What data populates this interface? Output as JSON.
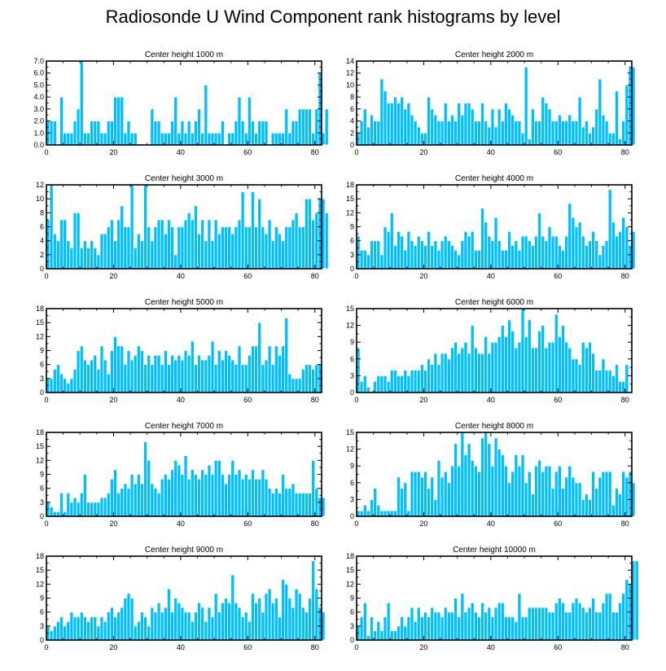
{
  "chart_data": {
    "title": "Radiosonde U Wind Component rank histograms by level",
    "type": "bar",
    "panels": [
      {
        "title": "Center height 1000 m",
        "xlim": [
          0,
          82
        ],
        "ylim": [
          0,
          7
        ],
        "xticks": [
          "0",
          "20",
          "40",
          "60",
          "80"
        ],
        "yticks": [
          "0.0",
          "1.0",
          "2.0",
          "3.0",
          "4.0",
          "5.0",
          "6.0",
          "7.0"
        ],
        "ytick_values": [
          0,
          1,
          2,
          3,
          4,
          5,
          6,
          7
        ],
        "values": [
          2,
          2,
          2,
          0,
          4,
          1,
          1,
          1,
          2,
          3,
          7,
          1,
          1,
          2,
          2,
          2,
          1,
          1,
          2,
          2,
          4,
          4,
          4,
          1,
          2,
          1,
          1,
          0,
          0,
          0,
          0,
          3,
          2,
          2,
          1,
          1,
          1,
          2,
          4,
          1,
          2,
          1,
          2,
          1,
          2,
          3,
          1,
          5,
          1,
          1,
          1,
          1,
          2,
          0,
          1,
          1,
          2,
          4,
          2,
          1,
          4,
          2,
          1,
          2,
          2,
          2,
          0,
          1,
          1,
          1,
          1,
          3,
          1,
          2,
          2,
          3,
          3,
          3,
          3,
          1,
          3,
          6,
          1,
          3
        ]
      },
      {
        "title": "Center height 2000 m",
        "xlim": [
          0,
          82
        ],
        "ylim": [
          0,
          14
        ],
        "xticks": [
          "0",
          "20",
          "40",
          "60",
          "80"
        ],
        "yticks": [
          "0",
          "2",
          "4",
          "6",
          "8",
          "10",
          "12",
          "14"
        ],
        "ytick_values": [
          0,
          2,
          4,
          6,
          8,
          10,
          12,
          14
        ],
        "values": [
          2,
          4,
          6,
          3,
          5,
          4,
          4,
          11,
          9,
          7,
          7,
          8,
          7,
          8,
          6,
          7,
          5,
          4,
          3,
          2,
          2,
          8,
          6,
          5,
          4,
          4,
          7,
          4,
          5,
          4,
          7,
          5,
          7,
          7,
          6,
          4,
          4,
          7,
          4,
          3,
          6,
          3,
          6,
          4,
          7,
          6,
          5,
          4,
          4,
          2,
          13,
          1,
          6,
          4,
          4,
          8,
          7,
          6,
          4,
          4,
          5,
          4,
          4,
          5,
          4,
          4,
          8,
          3,
          4,
          2,
          3,
          6,
          11,
          5,
          4,
          2,
          2,
          9,
          1,
          4,
          10,
          13,
          13
        ]
      },
      {
        "title": "Center height 3000 m",
        "xlim": [
          0,
          82
        ],
        "ylim": [
          0,
          12
        ],
        "xticks": [
          "0",
          "20",
          "40",
          "60",
          "80"
        ],
        "yticks": [
          "0",
          "2",
          "4",
          "6",
          "8",
          "10",
          "12"
        ],
        "ytick_values": [
          0,
          2,
          4,
          6,
          8,
          10,
          12
        ],
        "values": [
          7,
          12,
          5,
          4,
          7,
          7,
          4,
          3,
          8,
          8,
          3,
          4,
          3,
          4,
          3,
          2,
          5,
          5,
          6,
          7,
          4,
          7,
          9,
          6,
          6,
          12,
          3,
          5,
          4,
          12,
          6,
          4,
          6,
          7,
          7,
          5,
          7,
          6,
          2,
          6,
          6,
          7,
          8,
          7,
          9,
          5,
          7,
          4,
          7,
          4,
          7,
          5,
          6,
          6,
          6,
          5,
          6,
          7,
          11,
          6,
          6,
          11,
          6,
          10,
          6,
          5,
          7,
          4,
          6,
          5,
          4,
          6,
          6,
          7,
          8,
          6,
          6,
          10,
          10,
          7,
          8,
          10,
          10,
          8
        ]
      },
      {
        "title": "Center height 4000 m",
        "xlim": [
          0,
          82
        ],
        "ylim": [
          0,
          18
        ],
        "xticks": [
          "0",
          "20",
          "40",
          "60",
          "80"
        ],
        "yticks": [
          "0",
          "3",
          "6",
          "9",
          "12",
          "15",
          "18"
        ],
        "ytick_values": [
          0,
          3,
          6,
          9,
          12,
          15,
          18
        ],
        "values": [
          7,
          4,
          4,
          3,
          6,
          6,
          6,
          3,
          9,
          8,
          12,
          5,
          8,
          7,
          4,
          8,
          6,
          5,
          7,
          6,
          5,
          8,
          5,
          6,
          4,
          6,
          7,
          6,
          5,
          4,
          3,
          6,
          8,
          7,
          8,
          4,
          4,
          13,
          10,
          7,
          6,
          11,
          6,
          4,
          4,
          8,
          5,
          6,
          4,
          7,
          7,
          6,
          5,
          7,
          12,
          7,
          6,
          9,
          7,
          7,
          5,
          4,
          7,
          14,
          11,
          9,
          10,
          7,
          5,
          6,
          8,
          6,
          3,
          5,
          6,
          17,
          10,
          7,
          8,
          11,
          9,
          5,
          8
        ]
      },
      {
        "title": "Center height 5000 m",
        "xlim": [
          0,
          82
        ],
        "ylim": [
          0,
          18
        ],
        "xticks": [
          "0",
          "20",
          "40",
          "60",
          "80"
        ],
        "yticks": [
          "0",
          "3",
          "6",
          "9",
          "12",
          "15",
          "18"
        ],
        "ytick_values": [
          0,
          3,
          6,
          9,
          12,
          15,
          18
        ],
        "values": [
          3,
          3,
          5,
          6,
          4,
          3,
          2,
          3,
          5,
          9,
          10,
          7,
          6,
          7,
          8,
          5,
          10,
          7,
          4,
          9,
          12,
          10,
          10,
          6,
          9,
          7,
          8,
          10,
          9,
          6,
          8,
          6,
          8,
          8,
          6,
          9,
          6,
          8,
          7,
          8,
          7,
          9,
          8,
          11,
          6,
          8,
          7,
          7,
          8,
          11,
          6,
          9,
          7,
          9,
          8,
          7,
          6,
          10,
          6,
          6,
          8,
          10,
          10,
          15,
          6,
          7,
          10,
          6,
          10,
          8,
          10,
          16,
          4,
          3,
          3,
          3,
          5,
          6,
          6,
          5,
          6,
          6
        ]
      },
      {
        "title": "Center height 6000 m",
        "xlim": [
          0,
          82
        ],
        "ylim": [
          0,
          15
        ],
        "xticks": [
          "0",
          "20",
          "40",
          "60",
          "80"
        ],
        "yticks": [
          "0",
          "3",
          "6",
          "9",
          "12",
          "15"
        ],
        "ytick_values": [
          0,
          3,
          6,
          9,
          12,
          15
        ],
        "values": [
          8,
          2,
          3,
          1,
          0,
          2,
          3,
          3,
          3,
          2,
          4,
          4,
          3,
          3,
          4,
          3,
          4,
          4,
          4,
          5,
          4,
          6,
          5,
          7,
          5,
          7,
          7,
          6,
          8,
          9,
          7,
          8,
          9,
          7,
          12,
          8,
          7,
          7,
          10,
          7,
          9,
          9,
          10,
          12,
          10,
          13,
          11,
          8,
          9,
          15,
          10,
          13,
          8,
          8,
          11,
          12,
          8,
          9,
          9,
          14,
          10,
          12,
          9,
          8,
          6,
          6,
          5,
          9,
          8,
          9,
          7,
          4,
          4,
          6,
          4,
          4,
          3,
          5,
          2,
          2,
          5
        ]
      },
      {
        "title": "Center height 7000 m",
        "xlim": [
          0,
          82
        ],
        "ylim": [
          0,
          18
        ],
        "xticks": [
          "0",
          "20",
          "40",
          "60",
          "80"
        ],
        "yticks": [
          "0",
          "3",
          "6",
          "9",
          "12",
          "15",
          "18"
        ],
        "ytick_values": [
          0,
          3,
          6,
          9,
          12,
          15,
          18
        ],
        "values": [
          3,
          2,
          1,
          1,
          5,
          1,
          5,
          3,
          4,
          3,
          5,
          9,
          3,
          3,
          3,
          3,
          4,
          4,
          5,
          8,
          10,
          5,
          6,
          7,
          6,
          9,
          7,
          9,
          7,
          16,
          12,
          7,
          6,
          5,
          8,
          9,
          8,
          10,
          12,
          11,
          9,
          13,
          8,
          10,
          9,
          8,
          10,
          9,
          11,
          9,
          12,
          12,
          9,
          7,
          9,
          12,
          9,
          10,
          8,
          9,
          8,
          10,
          8,
          8,
          10,
          8,
          6,
          5,
          6,
          5,
          9,
          6,
          6,
          7,
          5,
          5,
          5,
          5,
          5,
          12,
          6,
          4,
          4
        ]
      },
      {
        "title": "Center height 8000 m",
        "xlim": [
          0,
          82
        ],
        "ylim": [
          0,
          15
        ],
        "xticks": [
          "0",
          "20",
          "40",
          "60",
          "80"
        ],
        "yticks": [
          "0",
          "3",
          "6",
          "9",
          "12",
          "15"
        ],
        "ytick_values": [
          0,
          3,
          6,
          9,
          12,
          15
        ],
        "values": [
          1,
          1,
          2,
          1,
          3,
          5,
          2,
          1,
          1,
          1,
          1,
          1,
          7,
          5,
          6,
          1,
          8,
          8,
          8,
          7,
          8,
          5,
          7,
          3,
          10,
          7,
          8,
          6,
          9,
          13,
          9,
          15,
          11,
          13,
          10,
          9,
          8,
          14,
          15,
          13,
          9,
          14,
          12,
          11,
          9,
          6,
          8,
          11,
          9,
          11,
          6,
          8,
          4,
          9,
          10,
          8,
          9,
          9,
          5,
          8,
          9,
          5,
          7,
          9,
          7,
          6,
          6,
          3,
          4,
          3,
          8,
          5,
          7,
          8,
          8,
          8,
          2,
          5,
          4,
          8,
          7,
          8,
          6
        ]
      },
      {
        "title": "Center height 9000 m",
        "xlim": [
          0,
          82
        ],
        "ylim": [
          0,
          18
        ],
        "xticks": [
          "0",
          "20",
          "40",
          "60",
          "80"
        ],
        "yticks": [
          "0",
          "3",
          "6",
          "9",
          "12",
          "15",
          "18"
        ],
        "ytick_values": [
          0,
          3,
          6,
          9,
          12,
          15,
          18
        ],
        "values": [
          3,
          2,
          3,
          4,
          5,
          3,
          4,
          6,
          5,
          5,
          6,
          5,
          4,
          5,
          5,
          3,
          5,
          4,
          6,
          7,
          5,
          6,
          7,
          9,
          10,
          9,
          3,
          4,
          6,
          5,
          3,
          7,
          6,
          8,
          6,
          7,
          11,
          6,
          9,
          8,
          7,
          6,
          6,
          4,
          6,
          8,
          7,
          4,
          7,
          5,
          10,
          6,
          8,
          9,
          8,
          14,
          8,
          7,
          5,
          6,
          4,
          10,
          8,
          9,
          6,
          10,
          11,
          8,
          9,
          5,
          13,
          12,
          9,
          7,
          11,
          10,
          7,
          6,
          9,
          17,
          11,
          7,
          6
        ]
      },
      {
        "title": "Center height 10000 m",
        "xlim": [
          0,
          82
        ],
        "ylim": [
          0,
          18
        ],
        "xticks": [
          "0",
          "20",
          "40",
          "60",
          "80"
        ],
        "yticks": [
          "0",
          "3",
          "6",
          "9",
          "12",
          "15",
          "18"
        ],
        "ytick_values": [
          0,
          3,
          6,
          9,
          12,
          15,
          18
        ],
        "values": [
          3,
          5,
          8,
          1,
          5,
          2,
          4,
          2,
          5,
          8,
          2,
          2,
          3,
          5,
          3,
          5,
          7,
          4,
          7,
          5,
          6,
          5,
          7,
          6,
          6,
          5,
          7,
          6,
          6,
          9,
          5,
          10,
          6,
          7,
          8,
          6,
          5,
          8,
          6,
          7,
          5,
          7,
          8,
          8,
          5,
          5,
          5,
          4,
          10,
          5,
          5,
          7,
          7,
          7,
          7,
          7,
          7,
          6,
          6,
          8,
          9,
          8,
          6,
          6,
          8,
          9,
          8,
          7,
          6,
          7,
          9,
          6,
          6,
          8,
          10,
          10,
          6,
          6,
          8,
          10,
          13,
          12,
          17,
          17
        ]
      }
    ]
  }
}
